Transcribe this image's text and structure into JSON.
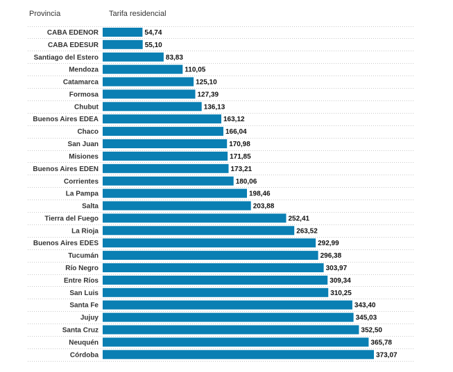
{
  "headers": {
    "provincia": "Provincia",
    "tarifa": "Tarifa residencial"
  },
  "colors": {
    "bar": "#0a7fb3",
    "grid": "#c8c8c8"
  },
  "chart_data": {
    "type": "bar",
    "orientation": "horizontal",
    "categories": [
      "CABA EDENOR",
      "CABA EDESUR",
      "Santiago del Estero",
      "Mendoza",
      "Catamarca",
      "Formosa",
      "Chubut",
      "Buenos Aires EDEA",
      "Chaco",
      "San Juan",
      "Misiones",
      "Buenos Aires EDEN",
      "Corrientes",
      "La Pampa",
      "Salta",
      "Tierra del Fuego",
      "La Rioja",
      "Buenos Aires EDES",
      "Tucumán",
      "Río Negro",
      "Entre Ríos",
      "San Luis",
      "Santa Fe",
      "Jujuy",
      "Santa Cruz",
      "Neuquén",
      "Córdoba"
    ],
    "values": [
      54.74,
      55.1,
      83.83,
      110.05,
      125.1,
      127.39,
      136.13,
      163.12,
      166.04,
      170.98,
      171.85,
      173.21,
      180.06,
      198.46,
      203.88,
      252.41,
      263.52,
      292.99,
      296.38,
      303.97,
      309.34,
      310.25,
      343.4,
      345.03,
      352.5,
      365.78,
      373.07
    ],
    "value_labels": [
      "54,74",
      "55,10",
      "83,83",
      "110,05",
      "125,10",
      "127,39",
      "136,13",
      "163,12",
      "166,04",
      "170,98",
      "171,85",
      "173,21",
      "180,06",
      "198,46",
      "203,88",
      "252,41",
      "263,52",
      "292,99",
      "296,38",
      "303,97",
      "309,34",
      "310,25",
      "343,40",
      "345,03",
      "352,50",
      "365,78",
      "373,07"
    ],
    "xlim": [
      0,
      373.07
    ],
    "grid": true
  }
}
